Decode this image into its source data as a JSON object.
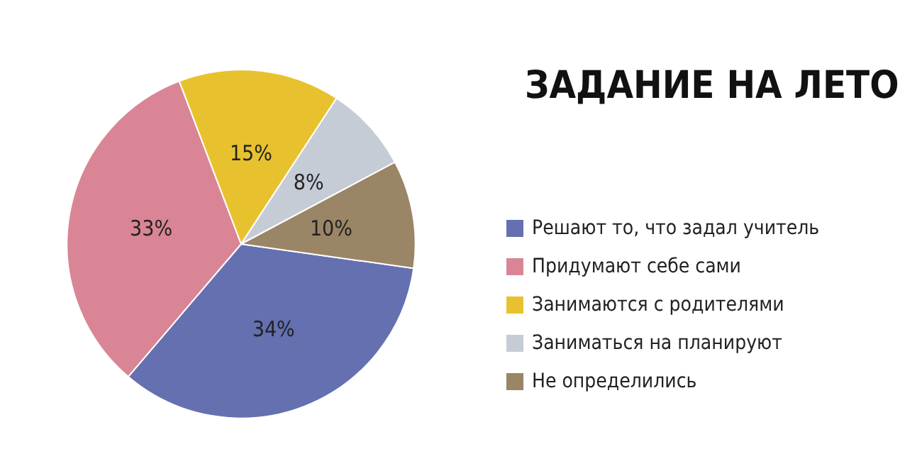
{
  "chart_data": {
    "type": "pie",
    "title": "ЗАДАНИЕ НА ЛЕТО",
    "categories": [
      "Решают то, что задал учитель",
      "Придумают себе сами",
      "Занимаются с родителями",
      "Заниматься на планируют",
      "Не определились"
    ],
    "values": [
      34,
      33,
      15,
      8,
      10
    ],
    "colors": [
      "#6470b0",
      "#d98595",
      "#e8c22e",
      "#c5ccd6",
      "#9a8566"
    ],
    "value_labels": [
      "34%",
      "33%",
      "15%",
      "8%",
      "10%"
    ],
    "legend": "right"
  }
}
